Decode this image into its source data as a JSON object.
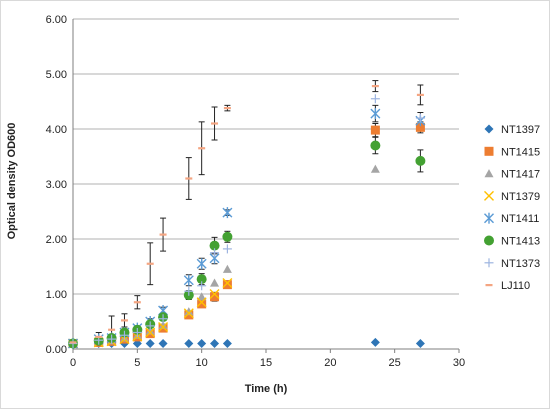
{
  "chart_data": {
    "type": "scatter",
    "title": "",
    "xlabel": "Time (h)",
    "ylabel": "Optical density OD600",
    "xlim": [
      0,
      30
    ],
    "ylim": [
      0,
      6
    ],
    "x_ticks": [
      "0",
      "5",
      "10",
      "15",
      "20",
      "25",
      "30"
    ],
    "y_ticks": [
      "0.00",
      "1.00",
      "2.00",
      "3.00",
      "4.00",
      "5.00",
      "6.00"
    ],
    "grid": "horizontal major gridlines",
    "legend_position": "right",
    "series": [
      {
        "name": "NT1397",
        "marker": "diamond",
        "color": "#2e75b6",
        "x": [
          0,
          2,
          3,
          4,
          5,
          6,
          7,
          9,
          10,
          11,
          12,
          23.5,
          27
        ],
        "y": [
          0.1,
          0.1,
          0.1,
          0.1,
          0.1,
          0.1,
          0.1,
          0.1,
          0.1,
          0.1,
          0.1,
          0.12,
          0.1
        ]
      },
      {
        "name": "NT1415",
        "marker": "square",
        "color": "#ed7d31",
        "x": [
          0,
          2,
          3,
          4,
          5,
          6,
          7,
          9,
          10,
          11,
          12,
          23.5,
          27
        ],
        "y": [
          0.1,
          0.12,
          0.14,
          0.18,
          0.22,
          0.28,
          0.38,
          0.62,
          0.82,
          0.95,
          1.17,
          3.98,
          4.03
        ],
        "err": [
          0,
          0.02,
          0.03,
          0.03,
          0.03,
          0.04,
          0.05,
          0.05,
          0.06,
          0.08,
          0.07,
          0.12,
          0.1
        ]
      },
      {
        "name": "NT1417",
        "marker": "triangle",
        "color": "#a5a5a5",
        "x": [
          0,
          2,
          3,
          4,
          5,
          6,
          7,
          9,
          10,
          11,
          12,
          23.5
        ],
        "y": [
          0.1,
          0.13,
          0.15,
          0.2,
          0.25,
          0.33,
          0.43,
          0.68,
          0.95,
          1.2,
          1.45,
          3.27
        ]
      },
      {
        "name": "NT1379",
        "marker": "x",
        "color": "#ffc000",
        "x": [
          0,
          2,
          3,
          4,
          5,
          6,
          7,
          9,
          10,
          11,
          12
        ],
        "y": [
          0.1,
          0.12,
          0.14,
          0.18,
          0.23,
          0.3,
          0.4,
          0.65,
          0.85,
          1.0,
          1.2
        ]
      },
      {
        "name": "NT1411",
        "marker": "star",
        "color": "#5b9bd5",
        "x": [
          0,
          2,
          3,
          4,
          5,
          6,
          7,
          9,
          10,
          11,
          12,
          23.5,
          27
        ],
        "y": [
          0.1,
          0.18,
          0.2,
          0.3,
          0.38,
          0.5,
          0.7,
          1.25,
          1.55,
          1.65,
          2.48,
          4.28,
          4.15
        ],
        "err": [
          0,
          0.03,
          0.03,
          0.04,
          0.04,
          0.05,
          0.06,
          0.1,
          0.1,
          0.1,
          0.05,
          0.15,
          0.15
        ]
      },
      {
        "name": "NT1413",
        "marker": "circle",
        "color": "#43a132",
        "x": [
          0,
          2,
          3,
          4,
          5,
          6,
          7,
          9,
          10,
          11,
          12,
          23.5,
          27
        ],
        "y": [
          0.1,
          0.15,
          0.2,
          0.3,
          0.35,
          0.45,
          0.58,
          0.98,
          1.27,
          1.88,
          2.04,
          3.7,
          3.42
        ],
        "err": [
          0,
          0.03,
          0.03,
          0.04,
          0.04,
          0.05,
          0.06,
          0.08,
          0.1,
          0.15,
          0.1,
          0.15,
          0.2
        ]
      },
      {
        "name": "NT1373",
        "marker": "plus",
        "color": "#9db4e0",
        "x": [
          0,
          2,
          3,
          4,
          5,
          6,
          7,
          9,
          10,
          11,
          12,
          23.5,
          27
        ],
        "y": [
          0.1,
          0.16,
          0.18,
          0.25,
          0.3,
          0.42,
          0.55,
          1.05,
          1.15,
          1.75,
          1.82,
          4.55,
          4.2
        ]
      },
      {
        "name": "LJ110",
        "marker": "dash",
        "color": "#f4a582",
        "x": [
          0,
          2,
          3,
          4,
          5,
          6,
          7,
          9,
          10,
          11,
          12,
          23.5,
          27
        ],
        "y": [
          0.12,
          0.22,
          0.35,
          0.52,
          0.85,
          1.55,
          2.08,
          3.1,
          3.65,
          4.1,
          4.38,
          4.78,
          4.62
        ],
        "err": [
          0.03,
          0.08,
          0.25,
          0.12,
          0.12,
          0.38,
          0.3,
          0.38,
          0.48,
          0.3,
          0.05,
          0.1,
          0.18
        ]
      }
    ]
  }
}
